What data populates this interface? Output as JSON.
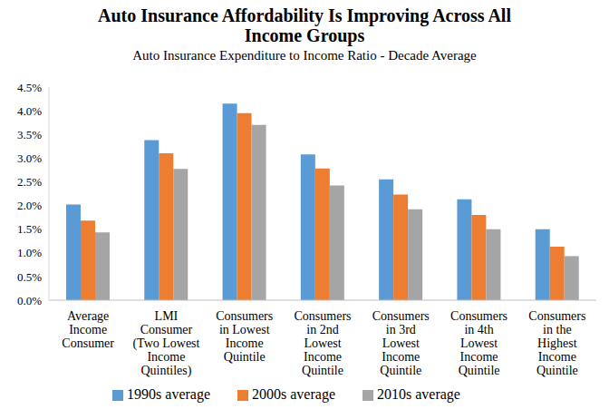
{
  "chart_data": {
    "type": "bar",
    "title": "Auto Insurance Affordability Is Improving Across All Income Groups",
    "subtitle": "Auto Insurance Expenditure to Income Ratio - Decade Average",
    "categories": [
      "Average Income Consumer",
      "LMI Consumer (Two Lowest Income Quintiles)",
      "Consumers in Lowest Income Quintile",
      "Consumers in 2nd Lowest Income Quintile",
      "Consumers in 3rd Lowest Income Quintile",
      "Consumers in 4th Lowest Income Quintile",
      "Consumers in the Highest Income Quintile"
    ],
    "series": [
      {
        "name": "1990s average",
        "color": "#5B9BD5",
        "values": [
          2.02,
          3.38,
          4.15,
          3.08,
          2.55,
          2.13,
          1.5
        ]
      },
      {
        "name": "2000s average",
        "color": "#ED7D31",
        "values": [
          1.68,
          3.1,
          3.95,
          2.78,
          2.23,
          1.8,
          1.13
        ]
      },
      {
        "name": "2010s average",
        "color": "#A5A5A5",
        "values": [
          1.43,
          2.77,
          3.7,
          2.42,
          1.92,
          1.5,
          0.93
        ]
      }
    ],
    "ylim": [
      0,
      4.5
    ],
    "yticks": [
      {
        "value": 0,
        "label": "0.0%"
      },
      {
        "value": 0.5,
        "label": "0.5%"
      },
      {
        "value": 1,
        "label": "1.0%"
      },
      {
        "value": 1.5,
        "label": "1.5%"
      },
      {
        "value": 2,
        "label": "2.0%"
      },
      {
        "value": 2.5,
        "label": "2.5%"
      },
      {
        "value": 3,
        "label": "3.0%"
      },
      {
        "value": 3.5,
        "label": "3.5%"
      },
      {
        "value": 4,
        "label": "4.0%"
      },
      {
        "value": 4.5,
        "label": "4.5%"
      }
    ],
    "grid": false,
    "legend": "bottom"
  }
}
